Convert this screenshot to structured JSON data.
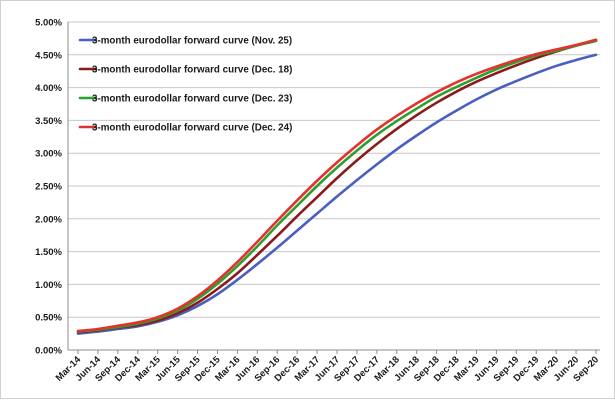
{
  "chart_data": {
    "type": "line",
    "title": "",
    "xlabel": "",
    "ylabel": "",
    "ylim": [
      0,
      5
    ],
    "yticks": [
      {
        "value": 0.0,
        "label": "0.00%"
      },
      {
        "value": 0.5,
        "label": "0.50%"
      },
      {
        "value": 1.0,
        "label": "1.00%"
      },
      {
        "value": 1.5,
        "label": "1.50%"
      },
      {
        "value": 2.0,
        "label": "2.00%"
      },
      {
        "value": 2.5,
        "label": "2.50%"
      },
      {
        "value": 3.0,
        "label": "3.00%"
      },
      {
        "value": 3.5,
        "label": "3.50%"
      },
      {
        "value": 4.0,
        "label": "4.00%"
      },
      {
        "value": 4.5,
        "label": "4.50%"
      },
      {
        "value": 5.0,
        "label": "5.00%"
      }
    ],
    "categories": [
      "Mar-14",
      "Jun-14",
      "Sep-14",
      "Dec-14",
      "Mar-15",
      "Jun-15",
      "Sep-15",
      "Dec-15",
      "Mar-16",
      "Jun-16",
      "Sep-16",
      "Dec-16",
      "Mar-17",
      "Jun-17",
      "Sep-17",
      "Dec-17",
      "Mar-18",
      "Jun-18",
      "Sep-18",
      "Dec-18",
      "Mar-19",
      "Jun-19",
      "Sep-19",
      "Dec-19",
      "Mar-20",
      "Jun-20",
      "Sep-20"
    ],
    "grid": true,
    "legend_position": "top-left",
    "series": [
      {
        "name": "3-month eurodollar forward curve (Nov. 25)",
        "color": "#4a5fc1",
        "values": [
          0.25,
          0.28,
          0.32,
          0.36,
          0.43,
          0.53,
          0.67,
          0.85,
          1.07,
          1.31,
          1.56,
          1.82,
          2.08,
          2.34,
          2.59,
          2.83,
          3.06,
          3.27,
          3.47,
          3.65,
          3.82,
          3.97,
          4.1,
          4.22,
          4.33,
          4.42,
          4.5
        ]
      },
      {
        "name": "3-month eurodollar forward curve (Dec. 18)",
        "color": "#8b1a1a",
        "values": [
          0.27,
          0.3,
          0.34,
          0.38,
          0.45,
          0.56,
          0.72,
          0.93,
          1.17,
          1.45,
          1.74,
          2.04,
          2.33,
          2.62,
          2.89,
          3.14,
          3.37,
          3.58,
          3.77,
          3.94,
          4.09,
          4.22,
          4.34,
          4.45,
          4.55,
          4.64,
          4.72
        ]
      },
      {
        "name": "3-month eurodollar forward curve (Dec. 23)",
        "color": "#2ca02c",
        "values": [
          0.28,
          0.31,
          0.35,
          0.4,
          0.48,
          0.6,
          0.78,
          1.01,
          1.28,
          1.58,
          1.9,
          2.2,
          2.5,
          2.78,
          3.04,
          3.28,
          3.49,
          3.68,
          3.86,
          4.01,
          4.15,
          4.28,
          4.39,
          4.49,
          4.56,
          4.64,
          4.71
        ]
      },
      {
        "name": "3-month eurodollar forward curve (Dec. 24)",
        "color": "#e53030",
        "values": [
          0.29,
          0.32,
          0.37,
          0.42,
          0.5,
          0.63,
          0.82,
          1.06,
          1.34,
          1.65,
          1.97,
          2.28,
          2.58,
          2.86,
          3.12,
          3.36,
          3.57,
          3.76,
          3.93,
          4.08,
          4.21,
          4.32,
          4.42,
          4.51,
          4.58,
          4.65,
          4.73
        ]
      }
    ]
  }
}
